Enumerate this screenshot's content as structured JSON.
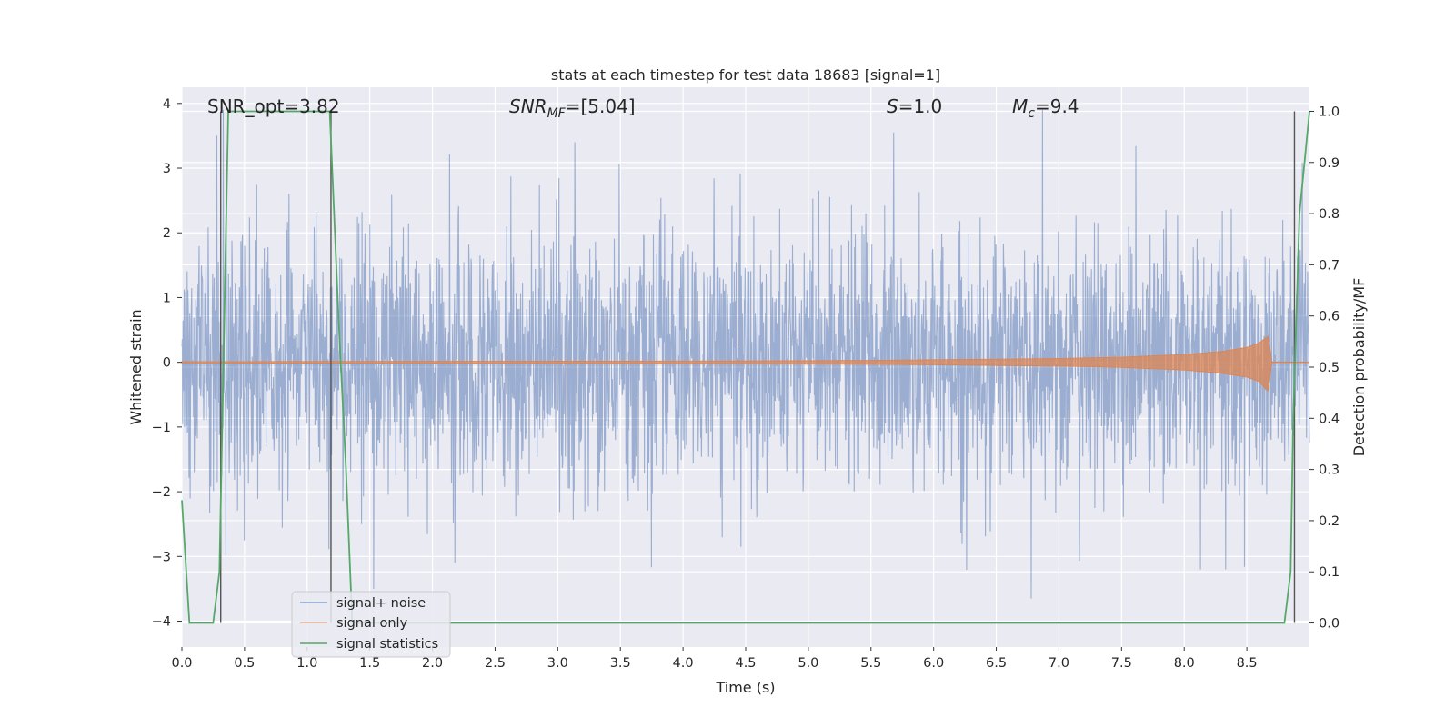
{
  "chart_data": {
    "type": "line",
    "title": "stats at each timestep for test data 18683 [signal=1]",
    "xlabel": "Time (s)",
    "ylabel": "Whitened strain",
    "ylabel_right": "Detection probability/MF",
    "xlim": [
      0.0,
      9.0
    ],
    "ylim": [
      -4.4,
      4.25
    ],
    "ylim_right": [
      -0.047,
      1.047
    ],
    "grid": true,
    "legend_placement": "lower left",
    "xticks": [
      "0.0",
      "0.5",
      "1.0",
      "1.5",
      "2.0",
      "2.5",
      "3.0",
      "3.5",
      "4.0",
      "4.5",
      "5.0",
      "5.5",
      "6.0",
      "6.5",
      "7.0",
      "7.5",
      "8.0",
      "8.5"
    ],
    "yticks": [
      "4",
      "3",
      "2",
      "1",
      "0",
      "−1",
      "−2",
      "−3",
      "−4"
    ],
    "yticks_right": [
      "1.0",
      "0.9",
      "0.8",
      "0.7",
      "0.6",
      "0.5",
      "0.4",
      "0.3",
      "0.2",
      "0.1",
      "0.0"
    ],
    "annotations": {
      "snr_opt": "SNR_opt=3.82",
      "snr_mf_base": "SNR",
      "snr_mf_sub": "MF",
      "snr_mf_rest": "=[5.04]",
      "s_label": "S",
      "s_rest": "=1.0",
      "mc_label": "M",
      "mc_sub": "c",
      "mc_rest": "=9.4"
    },
    "series": [
      {
        "name": "signal+ noise",
        "color": "#4c72b0",
        "note": "whitened noise, approx. Gaussian, std ~0.95, visible extremes",
        "peaks": [
          {
            "x": 0.28,
            "y": 3.5
          },
          {
            "x": 0.33,
            "y": 3.9
          },
          {
            "x": 1.53,
            "y": 3.8
          },
          {
            "x": 5.68,
            "y": 3.55
          },
          {
            "x": 6.87,
            "y": 3.9
          },
          {
            "x": 6.78,
            "y": -3.65
          },
          {
            "x": 1.53,
            "y": -3.5
          },
          {
            "x": 8.13,
            "y": -3.2
          },
          {
            "x": 8.33,
            "y": -3.2
          }
        ]
      },
      {
        "name": "signal only",
        "color": "#dd8452",
        "note": "chirp envelope (amplitude in strain units) vs time",
        "envelope_x": [
          0.0,
          4.5,
          5.5,
          6.5,
          7.0,
          7.5,
          8.0,
          8.3,
          8.5,
          8.6,
          8.65,
          8.67,
          8.7
        ],
        "envelope_y": [
          0.01,
          0.02,
          0.03,
          0.05,
          0.06,
          0.08,
          0.12,
          0.17,
          0.23,
          0.3,
          0.38,
          0.4,
          0.0
        ]
      },
      {
        "name": "signal statistics",
        "color": "#55a868",
        "axis": "right",
        "x": [
          0.0,
          0.06,
          0.25,
          0.3,
          0.37,
          1.18,
          1.25,
          1.31,
          1.36,
          8.35,
          8.8,
          8.85,
          8.87,
          8.92,
          9.0
        ],
        "y": [
          0.24,
          0.0,
          0.0,
          0.1,
          1.0,
          1.0,
          0.6,
          0.3,
          0.0,
          0.0,
          0.0,
          0.1,
          0.4,
          0.8,
          1.0
        ]
      }
    ],
    "vertical_markers_x": [
      0.31,
      1.19,
      8.88
    ]
  }
}
